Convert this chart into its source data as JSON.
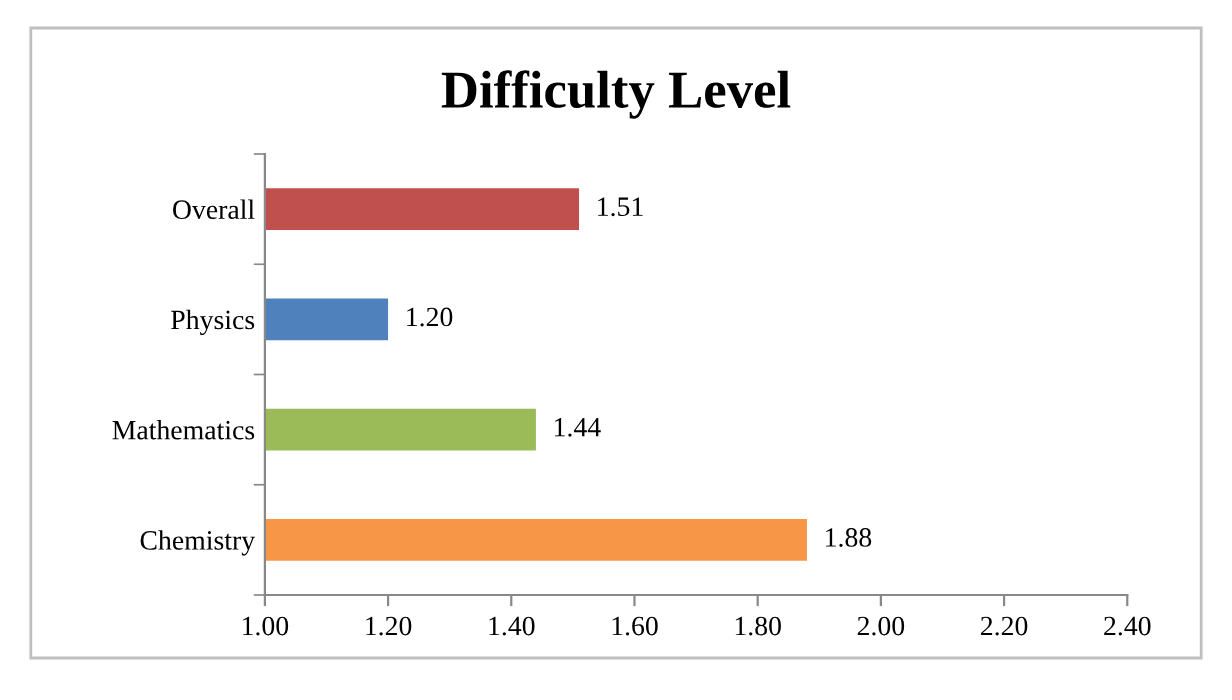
{
  "chart_data": {
    "type": "bar",
    "orientation": "horizontal",
    "title": "Difficulty Level",
    "categories": [
      "Overall",
      "Physics",
      "Mathematics",
      "Chemistry"
    ],
    "values": [
      1.51,
      1.2,
      1.44,
      1.88
    ],
    "colors": [
      "#c0504d",
      "#4f81bd",
      "#9bbb59",
      "#f79646"
    ],
    "xlim": [
      1.0,
      2.4
    ],
    "xticks": [
      {
        "value": 1.0,
        "label": "1.00"
      },
      {
        "value": 1.2,
        "label": "1.20"
      },
      {
        "value": 1.4,
        "label": "1.40"
      },
      {
        "value": 1.6,
        "label": "1.60"
      },
      {
        "value": 1.8,
        "label": "1.80"
      },
      {
        "value": 2.0,
        "label": "2.00"
      },
      {
        "value": 2.2,
        "label": "2.20"
      },
      {
        "value": 2.4,
        "label": "2.40"
      }
    ],
    "value_labels": [
      "1.51",
      "1.20",
      "1.44",
      "1.88"
    ],
    "grid": false,
    "legend": false
  }
}
